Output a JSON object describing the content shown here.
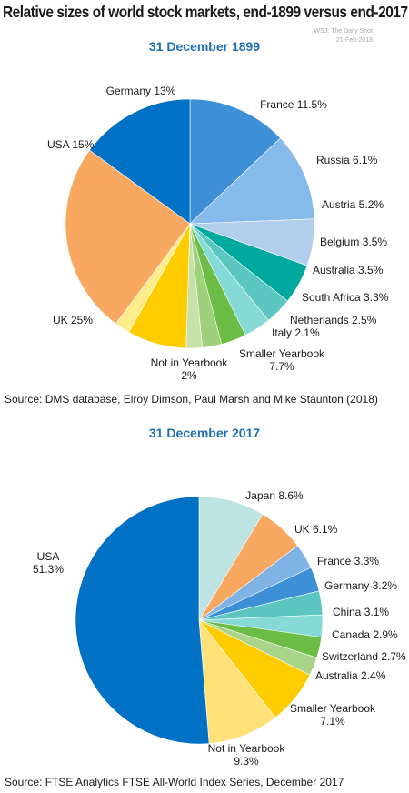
{
  "header": {
    "title": "Relative sizes of world stock markets, end-1899 versus end-2017",
    "watermark_source": "WSJ: The Daily Shot",
    "watermark_date": "21-Feb-2018"
  },
  "sources": [
    "Source:  DMS database, Elroy Dimson, Paul Marsh and Mike Staunton (2018)",
    "Source: FTSE Analytics FTSE All-World Index Series, December 2017"
  ],
  "chart_data": [
    {
      "type": "pie",
      "title": "31 December 1899",
      "slices": [
        {
          "label": "Germany",
          "value": 13,
          "display": "Germany 13%",
          "color": "#3d8fd6"
        },
        {
          "label": "France",
          "value": 11.5,
          "display": "France 11.5%",
          "color": "#86baea"
        },
        {
          "label": "Russia",
          "value": 6.1,
          "display": "Russia 6.1%",
          "color": "#b3cdec"
        },
        {
          "label": "Austria",
          "value": 5.2,
          "display": "Austria 5.2%",
          "color": "#00a99d"
        },
        {
          "label": "Belgium",
          "value": 3.5,
          "display": "Belgium 3.5%",
          "color": "#5cc7c0"
        },
        {
          "label": "Australia",
          "value": 3.5,
          "display": "Australia 3.5%",
          "color": "#85dad8"
        },
        {
          "label": "South Africa",
          "value": 3.3,
          "display": "South Africa 3.3%",
          "color": "#6cbd45"
        },
        {
          "label": "Netherlands",
          "value": 2.5,
          "display": "Netherlands 2.5%",
          "color": "#9fd07c"
        },
        {
          "label": "Italy",
          "value": 2.1,
          "display": "Italy 2.1%",
          "color": "#c6e2a8"
        },
        {
          "label": "Smaller Yearbook",
          "value": 7.7,
          "display": "Smaller Yearbook\n7.7%",
          "color": "#ffcc00"
        },
        {
          "label": "Not in Yearbook",
          "value": 2,
          "display": "Not in Yearbook\n2%",
          "color": "#ffec8b"
        },
        {
          "label": "UK",
          "value": 25,
          "display": "UK 25%",
          "color": "#f9a861"
        },
        {
          "label": "USA",
          "value": 15,
          "display": "USA 15%",
          "color": "#0071c5"
        }
      ]
    },
    {
      "type": "pie",
      "title": "31 December 2017",
      "slices": [
        {
          "label": "Japan",
          "value": 8.6,
          "display": "Japan 8.6%",
          "color": "#bde3e3"
        },
        {
          "label": "UK",
          "value": 6.1,
          "display": "UK 6.1%",
          "color": "#f9a861"
        },
        {
          "label": "France",
          "value": 3.3,
          "display": "France 3.3%",
          "color": "#7fb2e5"
        },
        {
          "label": "Germany",
          "value": 3.2,
          "display": "Germany 3.2%",
          "color": "#3d8fd6"
        },
        {
          "label": "China",
          "value": 3.1,
          "display": "China 3.1%",
          "color": "#5cc7c0"
        },
        {
          "label": "Canada",
          "value": 2.9,
          "display": "Canada 2.9%",
          "color": "#85dad8"
        },
        {
          "label": "Switzerland",
          "value": 2.7,
          "display": "Switzerland 2.7%",
          "color": "#6cbd45"
        },
        {
          "label": "Australia",
          "value": 2.4,
          "display": "Australia 2.4%",
          "color": "#a9d48a"
        },
        {
          "label": "Smaller Yearbook",
          "value": 7.1,
          "display": "Smaller Yearbook\n7.1%",
          "color": "#ffcc00"
        },
        {
          "label": "Not in Yearbook",
          "value": 9.3,
          "display": "Not in Yearbook\n9.3%",
          "color": "#ffe17a"
        },
        {
          "label": "USA",
          "value": 51.3,
          "display": "USA\n51.3%",
          "color": "#0071c5"
        }
      ]
    }
  ]
}
